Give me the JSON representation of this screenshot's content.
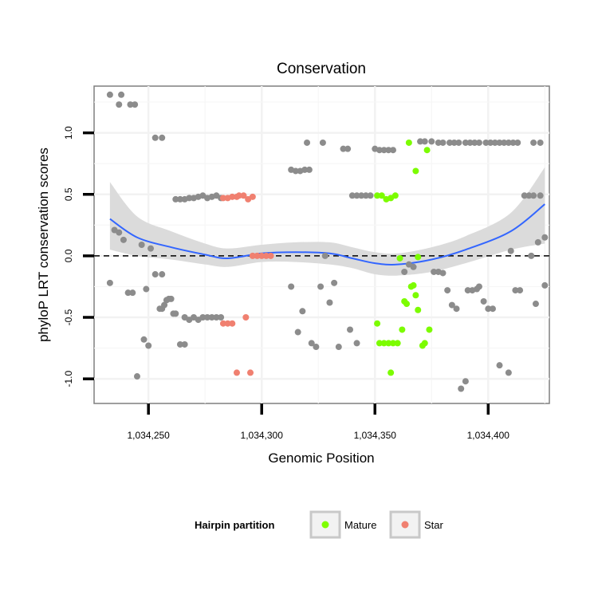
{
  "chart_data": {
    "type": "scatter",
    "title": "Conservation",
    "xlabel": "Genomic Position",
    "ylabel": "phyloP LRT conservation scores",
    "xlim": [
      1034226,
      1034427
    ],
    "ylim": [
      -1.2,
      1.38
    ],
    "x_ticks": [
      1034250,
      1034300,
      1034350,
      1034400
    ],
    "x_tick_labels": [
      "1,034,250",
      "1,034,300",
      "1,034,350",
      "1,034,400"
    ],
    "y_ticks": [
      -1.0,
      -0.5,
      0.0,
      0.5,
      1.0
    ],
    "y_tick_labels": [
      "-1.0",
      "-0.5",
      "0.0",
      "0.5",
      "1.0"
    ],
    "grid": true,
    "reference_line": {
      "y": 0.0,
      "style": "dashed"
    },
    "legend": {
      "title": "Hairpin partition",
      "placement": "bottom",
      "entries": [
        {
          "label": "Mature",
          "color": "#7fff00"
        },
        {
          "label": "Star",
          "color": "#f08070"
        }
      ]
    },
    "colors": {
      "other": "#8c8c8c",
      "mature": "#7cfc00",
      "star": "#f08070",
      "smooth_line": "#3366ff",
      "smooth_band": "#d9d9d9"
    },
    "smooth": {
      "x": [
        1034233,
        1034245,
        1034260,
        1034275,
        1034285,
        1034300,
        1034315,
        1034330,
        1034340,
        1034350,
        1034360,
        1034375,
        1034390,
        1034410,
        1034425
      ],
      "y": [
        0.3,
        0.15,
        0.07,
        0.01,
        -0.02,
        0.02,
        0.03,
        0.02,
        -0.02,
        -0.06,
        -0.07,
        -0.03,
        0.05,
        0.2,
        0.42
      ],
      "lower": [
        0.05,
        0.0,
        -0.03,
        -0.07,
        -0.09,
        -0.05,
        -0.05,
        -0.07,
        -0.1,
        -0.15,
        -0.16,
        -0.13,
        -0.06,
        0.05,
        0.1
      ],
      "upper": [
        0.6,
        0.32,
        0.2,
        0.1,
        0.06,
        0.09,
        0.11,
        0.11,
        0.07,
        0.03,
        0.02,
        0.07,
        0.16,
        0.35,
        0.72
      ]
    },
    "series": [
      {
        "name": "Other",
        "points": [
          [
            1034233,
            1.31
          ],
          [
            1034238,
            1.31
          ],
          [
            1034237,
            1.23
          ],
          [
            1034242,
            1.23
          ],
          [
            1034244,
            1.23
          ],
          [
            1034233,
            -0.22
          ],
          [
            1034235,
            0.21
          ],
          [
            1034237,
            0.19
          ],
          [
            1034239,
            0.13
          ],
          [
            1034241,
            -0.3
          ],
          [
            1034243,
            -0.3
          ],
          [
            1034245,
            -0.98
          ],
          [
            1034247,
            0.09
          ],
          [
            1034248,
            -0.68
          ],
          [
            1034249,
            -0.27
          ],
          [
            1034250,
            -0.73
          ],
          [
            1034251,
            0.06
          ],
          [
            1034253,
            -0.15
          ],
          [
            1034256,
            -0.15
          ],
          [
            1034253,
            0.96
          ],
          [
            1034256,
            0.96
          ],
          [
            1034255,
            -0.43
          ],
          [
            1034256,
            -0.43
          ],
          [
            1034257,
            -0.4
          ],
          [
            1034258,
            -0.36
          ],
          [
            1034259,
            -0.35
          ],
          [
            1034260,
            -0.35
          ],
          [
            1034261,
            -0.47
          ],
          [
            1034262,
            -0.47
          ],
          [
            1034264,
            -0.72
          ],
          [
            1034266,
            -0.72
          ],
          [
            1034262,
            0.46
          ],
          [
            1034264,
            0.46
          ],
          [
            1034266,
            0.46
          ],
          [
            1034268,
            0.47
          ],
          [
            1034270,
            0.47
          ],
          [
            1034272,
            0.48
          ],
          [
            1034274,
            0.49
          ],
          [
            1034276,
            0.47
          ],
          [
            1034278,
            0.48
          ],
          [
            1034280,
            0.49
          ],
          [
            1034282,
            0.47
          ],
          [
            1034266,
            -0.5
          ],
          [
            1034268,
            -0.52
          ],
          [
            1034270,
            -0.5
          ],
          [
            1034272,
            -0.52
          ],
          [
            1034274,
            -0.5
          ],
          [
            1034276,
            -0.5
          ],
          [
            1034278,
            -0.5
          ],
          [
            1034280,
            -0.5
          ],
          [
            1034282,
            -0.5
          ],
          [
            1034313,
            -0.25
          ],
          [
            1034313,
            0.7
          ],
          [
            1034315,
            0.69
          ],
          [
            1034317,
            0.69
          ],
          [
            1034319,
            0.7
          ],
          [
            1034321,
            0.7
          ],
          [
            1034316,
            -0.62
          ],
          [
            1034318,
            -0.45
          ],
          [
            1034320,
            0.92
          ],
          [
            1034322,
            -0.71
          ],
          [
            1034324,
            -0.74
          ],
          [
            1034326,
            -0.25
          ],
          [
            1034327,
            0.92
          ],
          [
            1034328,
            0.0
          ],
          [
            1034330,
            -0.38
          ],
          [
            1034332,
            -0.22
          ],
          [
            1034334,
            -0.74
          ],
          [
            1034336,
            0.87
          ],
          [
            1034338,
            0.87
          ],
          [
            1034339,
            -0.6
          ],
          [
            1034342,
            -0.71
          ],
          [
            1034340,
            0.49
          ],
          [
            1034342,
            0.49
          ],
          [
            1034344,
            0.49
          ],
          [
            1034346,
            0.49
          ],
          [
            1034348,
            0.49
          ],
          [
            1034350,
            0.87
          ],
          [
            1034352,
            0.86
          ],
          [
            1034354,
            0.86
          ],
          [
            1034356,
            0.86
          ],
          [
            1034358,
            0.86
          ],
          [
            1034363,
            -0.13
          ],
          [
            1034365,
            -0.07
          ],
          [
            1034367,
            -0.09
          ],
          [
            1034370,
            0.93
          ],
          [
            1034372,
            0.93
          ],
          [
            1034375,
            0.93
          ],
          [
            1034378,
            0.92
          ],
          [
            1034380,
            0.92
          ],
          [
            1034383,
            0.92
          ],
          [
            1034385,
            0.92
          ],
          [
            1034387,
            0.92
          ],
          [
            1034390,
            0.92
          ],
          [
            1034392,
            0.92
          ],
          [
            1034394,
            0.92
          ],
          [
            1034396,
            0.92
          ],
          [
            1034399,
            0.92
          ],
          [
            1034401,
            0.92
          ],
          [
            1034403,
            0.92
          ],
          [
            1034405,
            0.92
          ],
          [
            1034407,
            0.92
          ],
          [
            1034409,
            0.92
          ],
          [
            1034411,
            0.92
          ],
          [
            1034413,
            0.92
          ],
          [
            1034420,
            0.92
          ],
          [
            1034423,
            0.92
          ],
          [
            1034376,
            -0.13
          ],
          [
            1034378,
            -0.13
          ],
          [
            1034380,
            -0.14
          ],
          [
            1034382,
            -0.28
          ],
          [
            1034384,
            -0.4
          ],
          [
            1034386,
            -0.43
          ],
          [
            1034388,
            -1.08
          ],
          [
            1034390,
            -1.02
          ],
          [
            1034391,
            -0.28
          ],
          [
            1034393,
            -0.28
          ],
          [
            1034395,
            -0.27
          ],
          [
            1034396,
            -0.25
          ],
          [
            1034398,
            -0.37
          ],
          [
            1034400,
            -0.43
          ],
          [
            1034402,
            -0.43
          ],
          [
            1034405,
            -0.89
          ],
          [
            1034409,
            -0.95
          ],
          [
            1034410,
            0.04
          ],
          [
            1034412,
            -0.28
          ],
          [
            1034414,
            -0.28
          ],
          [
            1034416,
            0.49
          ],
          [
            1034418,
            0.49
          ],
          [
            1034419,
            0.0
          ],
          [
            1034420,
            0.49
          ],
          [
            1034422,
            0.11
          ],
          [
            1034421,
            -0.39
          ],
          [
            1034423,
            0.49
          ],
          [
            1034425,
            0.15
          ],
          [
            1034425,
            -0.24
          ]
        ]
      },
      {
        "name": "Mature",
        "points": [
          [
            1034351,
            0.49
          ],
          [
            1034353,
            0.49
          ],
          [
            1034355,
            0.46
          ],
          [
            1034357,
            0.47
          ],
          [
            1034359,
            0.49
          ],
          [
            1034351,
            -0.55
          ],
          [
            1034352,
            -0.71
          ],
          [
            1034354,
            -0.71
          ],
          [
            1034356,
            -0.71
          ],
          [
            1034358,
            -0.71
          ],
          [
            1034360,
            -0.71
          ],
          [
            1034357,
            -0.95
          ],
          [
            1034361,
            -0.02
          ],
          [
            1034362,
            -0.6
          ],
          [
            1034363,
            -0.37
          ],
          [
            1034364,
            -0.39
          ],
          [
            1034366,
            -0.25
          ],
          [
            1034367,
            -0.24
          ],
          [
            1034368,
            0.69
          ],
          [
            1034365,
            0.92
          ],
          [
            1034368,
            -0.32
          ],
          [
            1034369,
            -0.44
          ],
          [
            1034369,
            -0.01
          ],
          [
            1034371,
            -0.73
          ],
          [
            1034372,
            -0.71
          ],
          [
            1034373,
            0.86
          ],
          [
            1034374,
            -0.6
          ]
        ]
      },
      {
        "name": "Star",
        "points": [
          [
            1034283,
            0.47
          ],
          [
            1034285,
            0.47
          ],
          [
            1034287,
            0.48
          ],
          [
            1034289,
            0.48
          ],
          [
            1034290,
            0.49
          ],
          [
            1034292,
            0.49
          ],
          [
            1034294,
            0.46
          ],
          [
            1034296,
            0.48
          ],
          [
            1034283,
            -0.55
          ],
          [
            1034285,
            -0.55
          ],
          [
            1034287,
            -0.55
          ],
          [
            1034289,
            -0.95
          ],
          [
            1034293,
            -0.5
          ],
          [
            1034295,
            -0.95
          ],
          [
            1034296,
            0.0
          ],
          [
            1034298,
            0.0
          ],
          [
            1034300,
            0.0
          ],
          [
            1034302,
            0.0
          ],
          [
            1034304,
            0.0
          ]
        ]
      }
    ]
  }
}
